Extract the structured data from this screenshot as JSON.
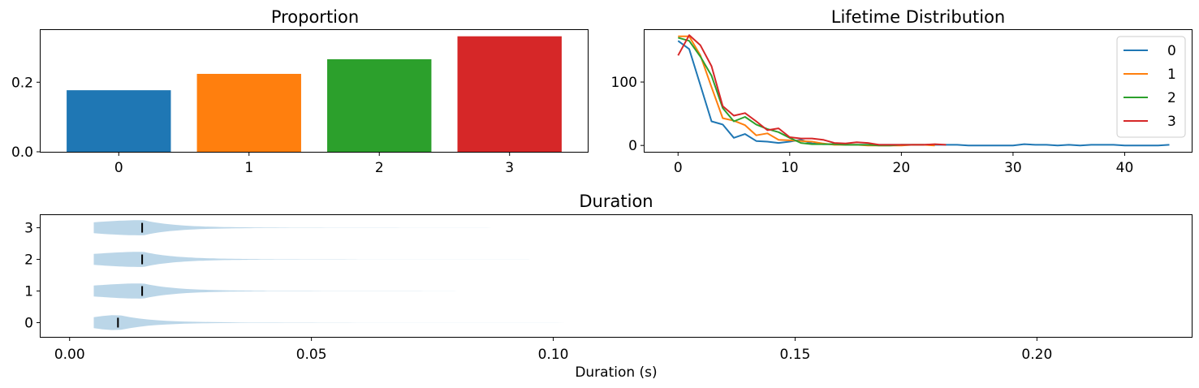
{
  "chart_data": [
    {
      "type": "bar",
      "title": "Proportion",
      "xlabel": "",
      "ylabel": "",
      "categories": [
        "0",
        "1",
        "2",
        "3"
      ],
      "values": [
        0.177,
        0.224,
        0.266,
        0.332
      ],
      "colors": [
        "#1f77b4",
        "#ff7f0e",
        "#2ca02c",
        "#d62728"
      ],
      "ylim": [
        0,
        0.35
      ],
      "yticks": [
        0.0,
        0.2
      ],
      "ytick_labels": [
        "0.0",
        "0.2"
      ],
      "grid": false
    },
    {
      "type": "line",
      "title": "Lifetime Distribution",
      "xlabel": "",
      "ylabel": "",
      "xlim": [
        -3,
        46
      ],
      "ylim": [
        -10,
        182
      ],
      "xticks": [
        0,
        10,
        20,
        30,
        40
      ],
      "xtick_labels": [
        "0",
        "10",
        "20",
        "30",
        "40"
      ],
      "yticks": [
        0,
        100
      ],
      "ytick_labels": [
        "0",
        "100"
      ],
      "legend": "top-right",
      "grid": false,
      "series": [
        {
          "name": "0",
          "color": "#1f77b4",
          "x": [
            0,
            1,
            2,
            3,
            4,
            5,
            6,
            7,
            8,
            9,
            10,
            11,
            12,
            13,
            14,
            15,
            16,
            17,
            18,
            19,
            20,
            21,
            22,
            23,
            24,
            25,
            26,
            27,
            28,
            29,
            30,
            31,
            32,
            33,
            34,
            35,
            36,
            37,
            38,
            39,
            40,
            41,
            42,
            43,
            44
          ],
          "y": [
            165,
            152,
            95,
            38,
            33,
            12,
            18,
            7,
            6,
            4,
            6,
            9,
            3,
            2,
            2,
            1,
            1,
            1,
            1,
            1,
            1,
            1,
            1,
            1,
            1,
            1,
            0,
            0,
            0,
            0,
            0,
            2,
            1,
            1,
            0,
            1,
            0,
            1,
            1,
            1,
            0,
            0,
            0,
            0,
            1
          ]
        },
        {
          "name": "1",
          "color": "#ff7f0e",
          "x": [
            0,
            1,
            2,
            3,
            4,
            5,
            6,
            7,
            8,
            9,
            10,
            11,
            12,
            13,
            14,
            15,
            16,
            17,
            18,
            19,
            20,
            21,
            22,
            23
          ],
          "y": [
            172,
            172,
            142,
            92,
            43,
            39,
            32,
            16,
            19,
            9,
            8,
            7,
            6,
            3,
            1,
            1,
            1,
            0,
            0,
            0,
            0,
            1,
            1,
            0
          ]
        },
        {
          "name": "2",
          "color": "#2ca02c",
          "x": [
            0,
            1,
            2,
            3,
            4,
            5,
            6,
            7,
            8,
            9,
            10,
            11,
            12,
            13,
            14,
            15,
            16,
            17,
            18,
            19,
            20,
            21,
            22
          ],
          "y": [
            170,
            165,
            140,
            110,
            59,
            38,
            45,
            33,
            26,
            21,
            12,
            4,
            2,
            2,
            2,
            1,
            1,
            1,
            0,
            0,
            1,
            1,
            1
          ]
        },
        {
          "name": "3",
          "color": "#d62728",
          "x": [
            0,
            1,
            2,
            3,
            4,
            5,
            6,
            7,
            8,
            9,
            10,
            11,
            12,
            13,
            14,
            15,
            16,
            17,
            18,
            19,
            20,
            21,
            22,
            23,
            24
          ],
          "y": [
            142,
            174,
            158,
            125,
            62,
            47,
            51,
            38,
            24,
            27,
            13,
            11,
            11,
            9,
            4,
            3,
            5,
            4,
            1,
            1,
            1,
            1,
            1,
            2,
            1
          ]
        }
      ]
    },
    {
      "type": "violin",
      "orientation": "horizontal",
      "title": "Duration",
      "xlabel": "Duration (s)",
      "ylabel": "",
      "xlim": [
        -0.006,
        0.232
      ],
      "xticks": [
        0.0,
        0.05,
        0.1,
        0.15,
        0.2
      ],
      "xtick_labels": [
        "0.00",
        "0.05",
        "0.10",
        "0.15",
        "0.20"
      ],
      "ylim": [
        -0.45,
        3.4
      ],
      "categories": [
        "0",
        "1",
        "2",
        "3"
      ],
      "color": "#1f77b4",
      "grid": false,
      "series": [
        {
          "name": "0",
          "min": 0.005,
          "max": 0.23,
          "median": 0.01
        },
        {
          "name": "1",
          "min": 0.005,
          "max": 0.11,
          "median": 0.015
        },
        {
          "name": "2",
          "min": 0.005,
          "max": 0.095,
          "median": 0.015
        },
        {
          "name": "3",
          "min": 0.005,
          "max": 0.13,
          "median": 0.015
        }
      ]
    }
  ]
}
